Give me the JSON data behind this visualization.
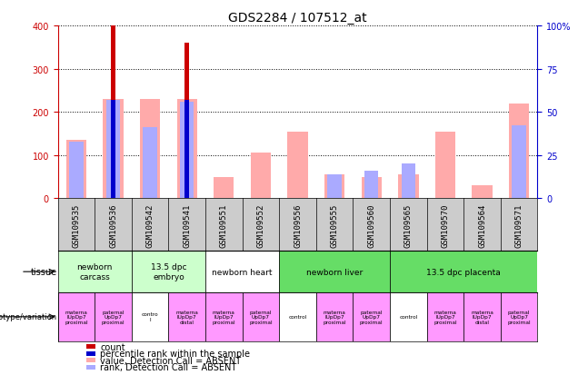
{
  "title": "GDS2284 / 107512_at",
  "samples": [
    "GSM109535",
    "GSM109536",
    "GSM109542",
    "GSM109541",
    "GSM109551",
    "GSM109552",
    "GSM109556",
    "GSM109555",
    "GSM109560",
    "GSM109565",
    "GSM109570",
    "GSM109564",
    "GSM109571"
  ],
  "count_values": [
    0,
    400,
    0,
    360,
    0,
    0,
    0,
    0,
    0,
    0,
    0,
    0,
    0
  ],
  "percentile_values": [
    0,
    57,
    0,
    57,
    0,
    0,
    0,
    0,
    0,
    0,
    0,
    0,
    0
  ],
  "absent_value_values": [
    135,
    230,
    230,
    230,
    50,
    105,
    155,
    55,
    50,
    55,
    155,
    30,
    220
  ],
  "absent_rank_values": [
    33,
    57,
    41,
    56,
    0,
    0,
    0,
    14,
    16,
    20,
    0,
    0,
    42
  ],
  "ylim_left": [
    0,
    400
  ],
  "ylim_right": [
    0,
    100
  ],
  "left_ticks": [
    0,
    100,
    200,
    300,
    400
  ],
  "right_ticks": [
    0,
    25,
    50,
    75,
    100
  ],
  "left_color": "#cc0000",
  "right_color": "#0000cc",
  "tissue_groups": [
    {
      "label": "newborn\ncarcass",
      "start": 0,
      "end": 2,
      "color": "#ccffcc"
    },
    {
      "label": "13.5 dpc\nembryo",
      "start": 2,
      "end": 4,
      "color": "#ccffcc"
    },
    {
      "label": "newborn heart",
      "start": 4,
      "end": 6,
      "color": "#ffffff"
    },
    {
      "label": "newborn liver",
      "start": 6,
      "end": 9,
      "color": "#66dd66"
    },
    {
      "label": "13.5 dpc placenta",
      "start": 9,
      "end": 13,
      "color": "#66dd66"
    }
  ],
  "genotype_labels": [
    {
      "label": "materna\nlUpDp7\nproximal",
      "start": 0,
      "end": 1,
      "color": "#ff99ff"
    },
    {
      "label": "paternal\nUpDp7\nproximal",
      "start": 1,
      "end": 2,
      "color": "#ff99ff"
    },
    {
      "label": "contro\nl",
      "start": 2,
      "end": 3,
      "color": "#ffffff"
    },
    {
      "label": "materna\nlUpDp7\ndistal",
      "start": 3,
      "end": 4,
      "color": "#ff99ff"
    },
    {
      "label": "materna\nlUpDp7\nproximal",
      "start": 4,
      "end": 5,
      "color": "#ff99ff"
    },
    {
      "label": "paternal\nUpDp7\nproximal",
      "start": 5,
      "end": 6,
      "color": "#ff99ff"
    },
    {
      "label": "control",
      "start": 6,
      "end": 7,
      "color": "#ffffff"
    },
    {
      "label": "materna\nlUpDp7\nproximal",
      "start": 7,
      "end": 8,
      "color": "#ff99ff"
    },
    {
      "label": "paternal\nUpDp7\nproximal",
      "start": 8,
      "end": 9,
      "color": "#ff99ff"
    },
    {
      "label": "control",
      "start": 9,
      "end": 10,
      "color": "#ffffff"
    },
    {
      "label": "materna\nlUpDp7\nproximal",
      "start": 10,
      "end": 11,
      "color": "#ff99ff"
    },
    {
      "label": "materna\nlUpDp7\ndistal",
      "start": 11,
      "end": 12,
      "color": "#ff99ff"
    },
    {
      "label": "paternal\nUpDp7\nproximal",
      "start": 12,
      "end": 13,
      "color": "#ff99ff"
    }
  ],
  "count_color": "#cc0000",
  "percentile_color": "#0000cc",
  "absent_value_color": "#ffaaaa",
  "absent_rank_color": "#aaaaff",
  "bg_color": "#ffffff",
  "xticklabel_bg": "#cccccc",
  "grid_color": "#000000",
  "label_fontsize": 6.5,
  "tick_fontsize": 7,
  "title_fontsize": 10,
  "legend_fontsize": 7,
  "legend_labels": [
    "count",
    "percentile rank within the sample",
    "value, Detection Call = ABSENT",
    "rank, Detection Call = ABSENT"
  ],
  "legend_colors": [
    "#cc0000",
    "#0000cc",
    "#ffaaaa",
    "#aaaaff"
  ]
}
